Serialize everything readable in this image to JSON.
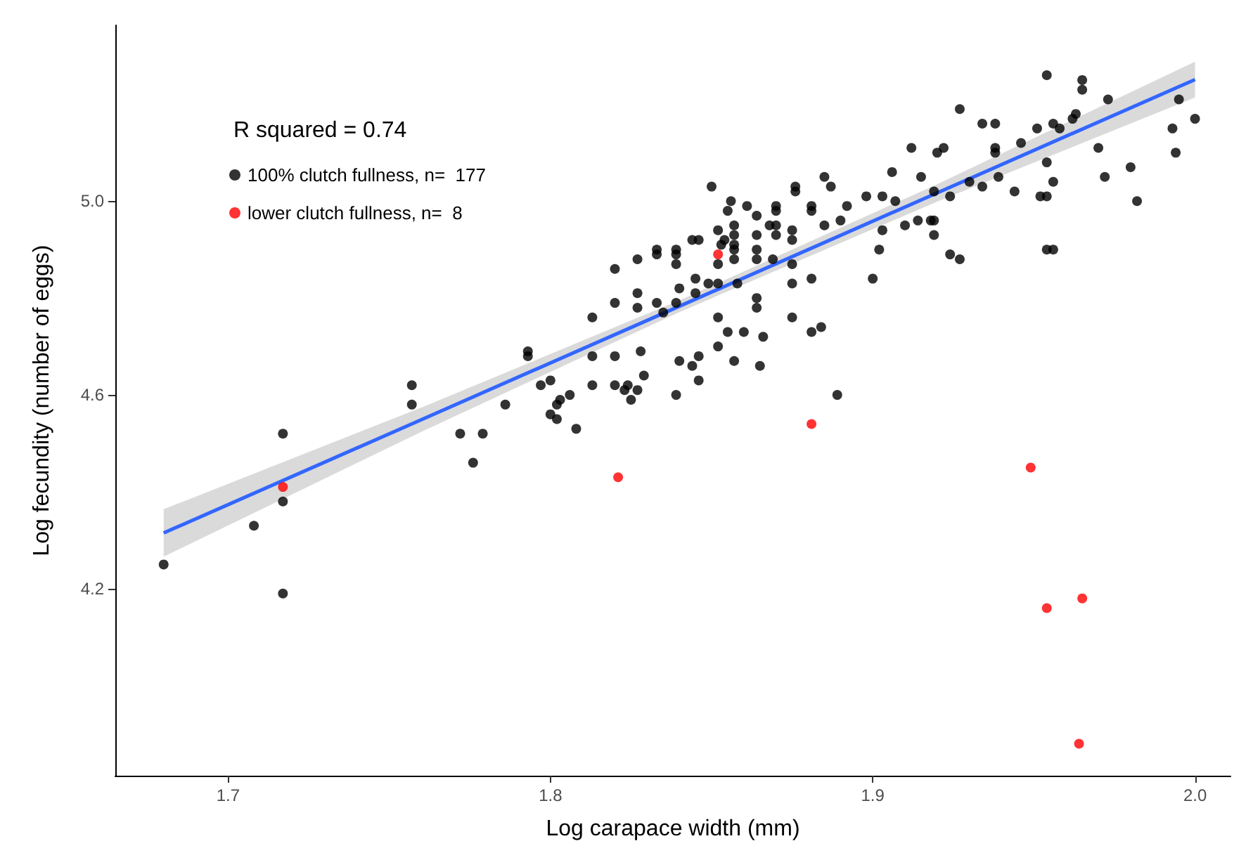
{
  "chart_data": {
    "type": "scatter",
    "xlabel": "Log carapace width (mm)",
    "ylabel": "Log fecundity (number of eggs)",
    "annotations": [
      "R squared = 0.74"
    ],
    "xlim": [
      1.665,
      2.011
    ],
    "ylim": [
      3.814,
      5.363
    ],
    "xticks": [
      1.7,
      1.8,
      1.9,
      {
        "value": 2.0,
        "label": "2.0"
      }
    ],
    "yticks": [
      4.2,
      4.6,
      {
        "value": 5.0,
        "label": "5.0"
      }
    ],
    "grid": false,
    "legend": "top left",
    "marker": "circle",
    "series": [
      {
        "name": "100% clutch fullness, n=  177",
        "color": "#000000",
        "x": [
          1.68,
          1.708,
          1.717,
          1.717,
          1.717,
          1.757,
          1.757,
          1.772,
          1.779,
          1.776,
          1.786,
          1.793,
          1.793,
          1.85,
          1.856,
          1.861,
          1.864,
          1.855,
          1.87,
          1.87,
          1.876,
          1.876,
          1.885,
          1.887,
          1.881,
          1.881,
          1.892,
          1.898,
          1.903,
          1.885,
          1.89,
          1.903,
          1.902,
          1.9,
          1.857,
          1.852,
          1.864,
          1.868,
          1.87,
          1.87,
          1.875,
          1.875,
          1.857,
          1.857,
          1.857,
          1.857,
          1.854,
          1.853,
          1.864,
          1.864,
          1.852,
          1.844,
          1.846,
          1.839,
          1.839,
          1.839,
          1.833,
          1.833,
          1.827,
          1.82,
          1.869,
          1.875,
          1.875,
          1.881,
          1.845,
          1.849,
          1.852,
          1.858,
          1.84,
          1.827,
          1.827,
          1.82,
          1.833,
          1.835,
          1.839,
          1.845,
          1.864,
          1.864,
          1.813,
          1.852,
          1.875,
          1.881,
          1.884,
          1.855,
          1.86,
          1.866,
          1.852,
          1.813,
          1.82,
          1.828,
          1.829,
          1.84,
          1.844,
          1.846,
          1.857,
          1.865,
          1.797,
          1.8,
          1.803,
          1.802,
          1.8,
          1.802,
          1.806,
          1.808,
          1.813,
          1.82,
          1.824,
          1.823,
          1.827,
          1.825,
          1.839,
          1.846,
          1.889,
          1.954,
          1.965,
          1.965,
          1.973,
          1.927,
          1.934,
          1.938,
          1.995,
          2.0,
          1.993,
          1.994,
          1.982,
          1.98,
          1.972,
          1.97,
          1.963,
          1.962,
          1.956,
          1.958,
          1.951,
          1.946,
          1.954,
          1.956,
          1.952,
          1.954,
          1.954,
          1.956,
          1.944,
          1.938,
          1.938,
          1.939,
          1.934,
          1.93,
          1.924,
          1.92,
          1.922,
          1.912,
          1.906,
          1.915,
          1.919,
          1.907,
          1.91,
          1.914,
          1.919,
          1.918,
          1.919,
          1.924,
          1.927
        ],
        "values": [
          4.25,
          4.33,
          4.52,
          4.38,
          4.19,
          4.62,
          4.58,
          4.52,
          4.52,
          4.46,
          4.58,
          4.69,
          4.68,
          5.03,
          5.0,
          4.99,
          4.97,
          4.98,
          4.99,
          4.98,
          5.03,
          5.02,
          5.05,
          5.03,
          4.99,
          4.98,
          4.99,
          5.01,
          5.01,
          4.95,
          4.96,
          4.94,
          4.9,
          4.84,
          4.95,
          4.94,
          4.93,
          4.95,
          4.95,
          4.93,
          4.94,
          4.92,
          4.93,
          4.91,
          4.9,
          4.88,
          4.92,
          4.91,
          4.9,
          4.88,
          4.87,
          4.92,
          4.92,
          4.9,
          4.89,
          4.87,
          4.9,
          4.89,
          4.88,
          4.86,
          4.88,
          4.87,
          4.83,
          4.84,
          4.84,
          4.83,
          4.83,
          4.83,
          4.82,
          4.81,
          4.78,
          4.79,
          4.79,
          4.77,
          4.79,
          4.81,
          4.8,
          4.78,
          4.76,
          4.76,
          4.76,
          4.73,
          4.74,
          4.73,
          4.73,
          4.72,
          4.7,
          4.68,
          4.68,
          4.69,
          4.64,
          4.67,
          4.66,
          4.68,
          4.67,
          4.66,
          4.62,
          4.63,
          4.59,
          4.58,
          4.56,
          4.55,
          4.6,
          4.53,
          4.62,
          4.62,
          4.62,
          4.61,
          4.61,
          4.59,
          4.6,
          4.63,
          4.6,
          5.26,
          5.25,
          5.23,
          5.21,
          5.19,
          5.16,
          5.16,
          5.21,
          5.17,
          5.15,
          5.1,
          5.0,
          5.07,
          5.05,
          5.11,
          5.18,
          5.17,
          5.16,
          5.15,
          5.15,
          5.12,
          5.08,
          5.04,
          5.01,
          5.01,
          4.9,
          4.9,
          5.02,
          5.11,
          5.1,
          5.05,
          5.03,
          5.04,
          5.01,
          5.1,
          5.11,
          5.11,
          5.06,
          5.05,
          5.02,
          5.0,
          4.95,
          4.96,
          4.96,
          4.96,
          4.93,
          4.89,
          4.88
        ]
      },
      {
        "name": "lower clutch fullness, n=  8",
        "color": "#ff0000",
        "x": [
          1.717,
          1.852,
          1.881,
          1.821,
          1.949,
          1.954,
          1.965,
          1.964
        ],
        "values": [
          4.41,
          4.89,
          4.54,
          4.43,
          4.45,
          4.16,
          4.18,
          3.88
        ]
      },
      {
        "type": "line",
        "marker": "none",
        "color": "#3366ff",
        "x": [
          1.68,
          1.76,
          1.84,
          1.92,
          2.0
        ],
        "values": [
          4.315,
          4.549,
          4.783,
          5.017,
          5.251
        ],
        "lower": [
          4.266,
          4.524,
          4.771,
          4.999,
          5.214
        ],
        "upper": [
          4.364,
          4.574,
          4.795,
          5.035,
          5.288
        ]
      }
    ]
  }
}
